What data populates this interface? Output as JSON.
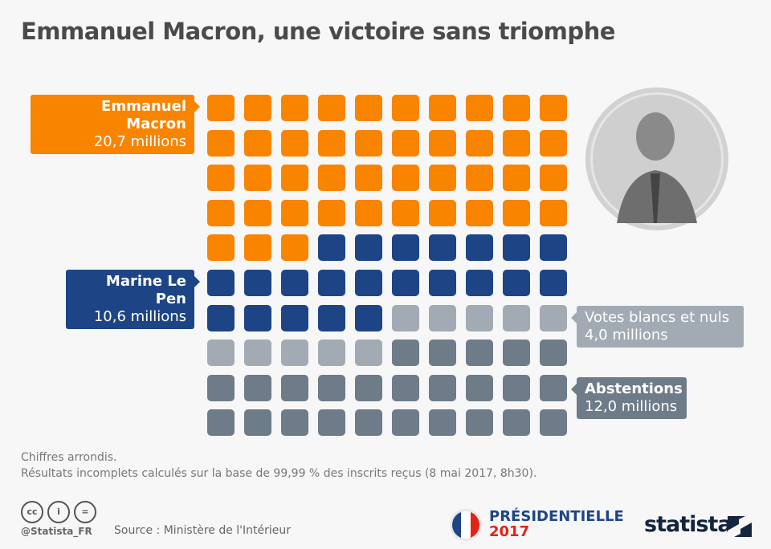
{
  "title": "Emmanuel Macron, une victoire sans triomphe",
  "chart_data": {
    "type": "waffle",
    "grid": [
      10,
      10
    ],
    "unit": "millions",
    "series": [
      {
        "name": "Emmanuel Macron",
        "value_label": "20,7 millions",
        "value": 20.7,
        "cells": 43,
        "color": "#f98400"
      },
      {
        "name": "Marine Le Pen",
        "value_label": "10,6 millions",
        "value": 10.6,
        "cells": 22,
        "color": "#1d4585"
      },
      {
        "name": "Votes blancs et nuls",
        "value_label": "4,0 millions",
        "value": 4.0,
        "cells": 10,
        "color": "#a2abb4"
      },
      {
        "name": "Abstentions",
        "value_label": "12,0 millions",
        "value": 12.0,
        "cells": 25,
        "color": "#6e7c89"
      }
    ]
  },
  "notes": [
    "Chiffres arrondis.",
    "Résultats incomplets calculés sur la base de 99,99 % des inscrits reçus (8 mai 2017, 8h30)."
  ],
  "footer": {
    "handle": "@Statista_FR",
    "source": "Source : Ministère de l'Intérieur",
    "election_logo_line1": "PRÉSIDENTIELLE",
    "election_logo_line2": "2017",
    "brand": "statista",
    "license_icons": [
      "cc",
      "by",
      "nd"
    ]
  }
}
